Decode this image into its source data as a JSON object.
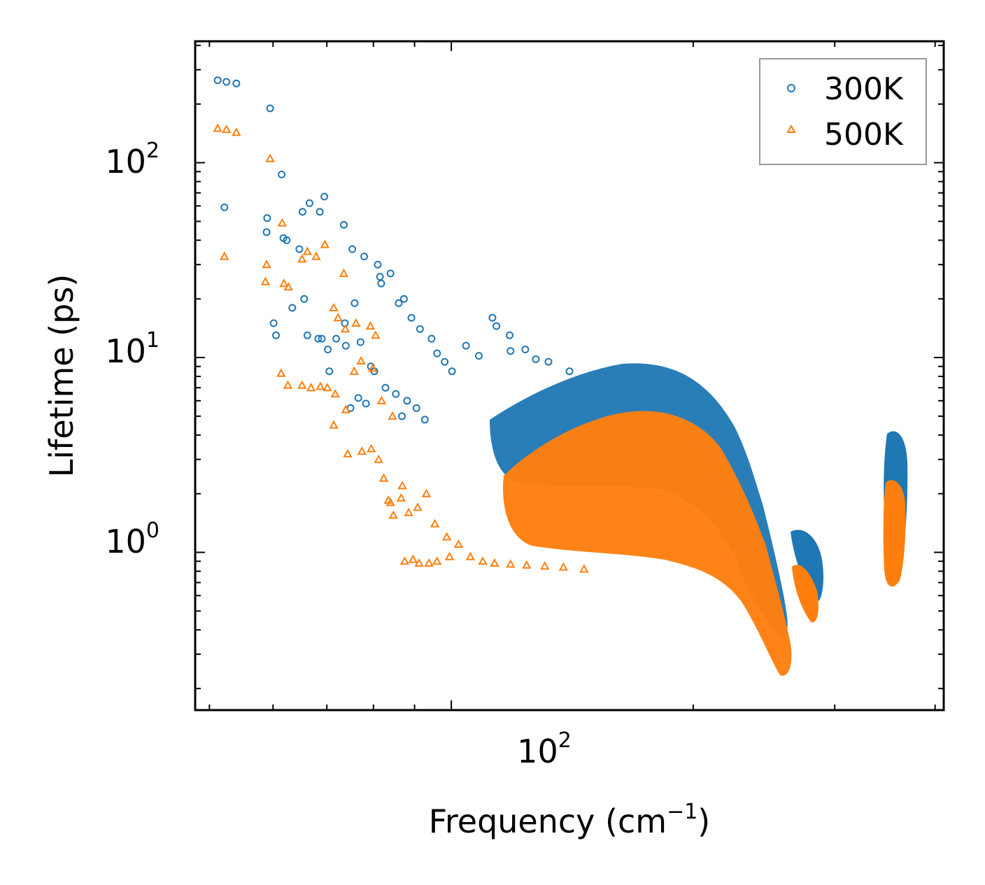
{
  "chart_data": {
    "type": "scatter",
    "title": "",
    "xlabel": "Frequency (cm",
    "xlabel_sup": "−1",
    "xlabel_end": ")",
    "ylabel": "Lifetime (ps)",
    "xscale": "log",
    "yscale": "log",
    "xlim": [
      48,
      410
    ],
    "ylim": [
      0.155,
      420
    ],
    "x_ticks": [
      {
        "value": 100,
        "base": "10",
        "exp": "2"
      }
    ],
    "y_ticks": [
      {
        "value": 1,
        "base": "10",
        "exp": "0"
      },
      {
        "value": 10,
        "base": "10",
        "exp": "1"
      },
      {
        "value": 100,
        "base": "10",
        "exp": "2"
      }
    ],
    "legend": {
      "position": "top-right"
    },
    "series": [
      {
        "name": "300K",
        "marker": "circle",
        "color": "#1f77b4",
        "points": [
          [
            51.2,
            265
          ],
          [
            52.5,
            260
          ],
          [
            54.0,
            255
          ],
          [
            59.5,
            190
          ],
          [
            52.2,
            59
          ],
          [
            59.0,
            52
          ],
          [
            58.9,
            44
          ],
          [
            61.5,
            87
          ],
          [
            61.8,
            41
          ],
          [
            62.4,
            40
          ],
          [
            65.3,
            56
          ],
          [
            66.6,
            62
          ],
          [
            68.6,
            56
          ],
          [
            69.5,
            67
          ],
          [
            73.5,
            48
          ],
          [
            75.3,
            36
          ],
          [
            77.9,
            33
          ],
          [
            81.0,
            30
          ],
          [
            81.5,
            26
          ],
          [
            81.8,
            24
          ],
          [
            84.0,
            27
          ],
          [
            86.0,
            19
          ],
          [
            87.3,
            20
          ],
          [
            89.2,
            16
          ],
          [
            91.4,
            14
          ],
          [
            94.5,
            12.5
          ],
          [
            60.1,
            15
          ],
          [
            60.5,
            13
          ],
          [
            63.4,
            18
          ],
          [
            64.7,
            36
          ],
          [
            65.6,
            20
          ],
          [
            66.2,
            13
          ],
          [
            68.3,
            12.5
          ],
          [
            69.0,
            12.5
          ],
          [
            70.2,
            11
          ],
          [
            71.9,
            12.5
          ],
          [
            73.7,
            15
          ],
          [
            73.9,
            11.5
          ],
          [
            75.8,
            19
          ],
          [
            77.1,
            12
          ],
          [
            79.4,
            9
          ],
          [
            80.2,
            8.5
          ],
          [
            82.8,
            7
          ],
          [
            85.3,
            6.5
          ],
          [
            88.1,
            6
          ],
          [
            90.5,
            5.5
          ],
          [
            70.5,
            8.5
          ],
          [
            74.9,
            5.5
          ],
          [
            76.6,
            6.2
          ],
          [
            78.3,
            5.8
          ],
          [
            86.8,
            5.0
          ],
          [
            92.7,
            4.8
          ],
          [
            96.0,
            10.5
          ],
          [
            98.1,
            9.5
          ],
          [
            100.2,
            8.5
          ],
          [
            104.3,
            11.5
          ],
          [
            108.2,
            10.2
          ],
          [
            112.5,
            16
          ],
          [
            113.8,
            14.5
          ],
          [
            118.2,
            13
          ],
          [
            123.6,
            11
          ],
          [
            132.1,
            9.5
          ],
          [
            140.3,
            8.5
          ],
          [
            118.5,
            10.8
          ],
          [
            127.4,
            9.8
          ]
        ]
      },
      {
        "name": "500K",
        "marker": "triangle",
        "color": "#ff7f0e",
        "points": [
          [
            51.2,
            150
          ],
          [
            52.5,
            148
          ],
          [
            54.0,
            143
          ],
          [
            59.5,
            105
          ],
          [
            52.2,
            33
          ],
          [
            58.9,
            30
          ],
          [
            58.7,
            24.5
          ],
          [
            61.6,
            49
          ],
          [
            61.9,
            24
          ],
          [
            62.7,
            23
          ],
          [
            65.2,
            32
          ],
          [
            66.2,
            35
          ],
          [
            67.9,
            33
          ],
          [
            69.6,
            38
          ],
          [
            73.5,
            27
          ],
          [
            71.4,
            18
          ],
          [
            72.3,
            16
          ],
          [
            73.8,
            14
          ],
          [
            76.1,
            15
          ],
          [
            79.3,
            14.5
          ],
          [
            80.5,
            13
          ],
          [
            61.4,
            8.3
          ],
          [
            62.6,
            7.2
          ],
          [
            65.2,
            7.2
          ],
          [
            66.9,
            7.0
          ],
          [
            68.7,
            7.1
          ],
          [
            70.1,
            7.0
          ],
          [
            71.7,
            6.5
          ],
          [
            73.9,
            5.4
          ],
          [
            71.4,
            4.5
          ],
          [
            75.7,
            8.5
          ],
          [
            77.2,
            9.6
          ],
          [
            79.8,
            8.8
          ],
          [
            81.9,
            6.0
          ],
          [
            84.5,
            5.0
          ],
          [
            74.3,
            3.2
          ],
          [
            77.4,
            3.3
          ],
          [
            79.5,
            3.4
          ],
          [
            81.2,
            3.0
          ],
          [
            82.4,
            2.4
          ],
          [
            83.5,
            1.85
          ],
          [
            84.7,
            1.55
          ],
          [
            86.6,
            1.9
          ],
          [
            87.5,
            0.9
          ],
          [
            89.6,
            0.92
          ],
          [
            91.2,
            0.88
          ],
          [
            93.8,
            0.88
          ],
          [
            96.0,
            0.9
          ],
          [
            99.5,
            0.95
          ],
          [
            84.0,
            1.8
          ],
          [
            86.9,
            2.2
          ],
          [
            88.5,
            1.6
          ],
          [
            90.8,
            1.7
          ],
          [
            93.1,
            2.0
          ],
          [
            95.4,
            1.4
          ],
          [
            98.7,
            1.2
          ],
          [
            102.1,
            1.1
          ],
          [
            105.6,
            0.95
          ],
          [
            109.4,
            0.9
          ],
          [
            113.2,
            0.88
          ],
          [
            118.5,
            0.87
          ],
          [
            124.1,
            0.86
          ],
          [
            130.7,
            0.85
          ],
          [
            137.9,
            0.84
          ],
          [
            146.3,
            0.82
          ]
        ]
      }
    ]
  }
}
